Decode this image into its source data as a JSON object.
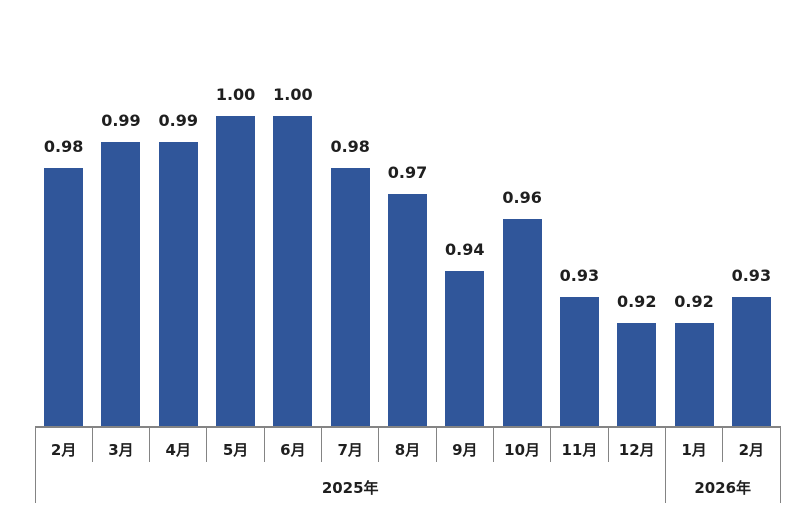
{
  "chart_data": {
    "type": "bar",
    "title": "",
    "xlabel": "",
    "ylabel": "",
    "categories": [
      "2月",
      "3月",
      "4月",
      "5月",
      "6月",
      "7月",
      "8月",
      "9月",
      "10月",
      "11月",
      "12月",
      "1月",
      "2月"
    ],
    "values": [
      0.98,
      0.99,
      0.99,
      1.0,
      1.0,
      0.98,
      0.97,
      0.94,
      0.96,
      0.93,
      0.92,
      0.92,
      0.93
    ],
    "data_labels": [
      "0.98",
      "0.99",
      "0.99",
      "1.00",
      "1.00",
      "0.98",
      "0.97",
      "0.94",
      "0.96",
      "0.93",
      "0.92",
      "0.92",
      "0.93"
    ],
    "year_groups": [
      {
        "label": "2025年",
        "start_index": 0,
        "month_count": 11
      },
      {
        "label": "2026年",
        "start_index": 11,
        "month_count": 2
      }
    ],
    "ylim": [
      0.88,
      1.02
    ],
    "grid": "off",
    "legend": "none",
    "data_labels_visible": true,
    "colors": {
      "bar": "#30569A",
      "data_label": "#1f1f1f",
      "axis_label": "#1f1f1f",
      "axis_line": "#848484",
      "background": "#ffffff"
    }
  }
}
